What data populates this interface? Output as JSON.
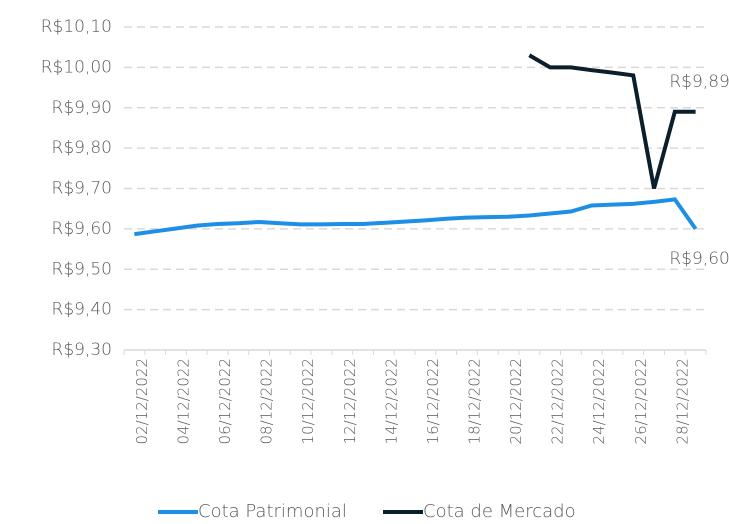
{
  "chart_data": {
    "type": "line",
    "categories": [
      "02/12/2022",
      null,
      "04/12/2022",
      null,
      "06/12/2022",
      null,
      "08/12/2022",
      null,
      "10/12/2022",
      null,
      "12/12/2022",
      null,
      "14/12/2022",
      null,
      "16/12/2022",
      null,
      "18/12/2022",
      null,
      "20/12/2022",
      null,
      "22/12/2022",
      null,
      "24/12/2022",
      null,
      "26/12/2022",
      null,
      "28/12/2022",
      null
    ],
    "series": [
      {
        "name": "Cota Patrimonial",
        "color": "#1e8fe6",
        "values": [
          9.587,
          9.594,
          9.601,
          9.608,
          9.612,
          9.614,
          9.617,
          9.614,
          9.611,
          9.611,
          9.612,
          9.612,
          9.615,
          9.618,
          9.621,
          9.625,
          9.628,
          9.629,
          9.63,
          9.633,
          9.638,
          9.643,
          9.658,
          9.66,
          9.662,
          9.667,
          9.673,
          9.6
        ],
        "value_labels": [
          null,
          null,
          null,
          null,
          null,
          null,
          null,
          null,
          null,
          null,
          null,
          null,
          null,
          null,
          null,
          null,
          null,
          null,
          null,
          null,
          null,
          null,
          null,
          null,
          null,
          null,
          null,
          "R$9,60"
        ]
      },
      {
        "name": "Cota de Mercado",
        "color": "#0b1e2c",
        "values": [
          null,
          null,
          null,
          null,
          null,
          null,
          null,
          null,
          null,
          null,
          null,
          null,
          null,
          null,
          null,
          null,
          null,
          null,
          null,
          10.03,
          10.0,
          10.0,
          9.993,
          9.987,
          9.98,
          9.7,
          9.89,
          9.89
        ],
        "value_labels": [
          null,
          null,
          null,
          null,
          null,
          null,
          null,
          null,
          null,
          null,
          null,
          null,
          null,
          null,
          null,
          null,
          null,
          null,
          null,
          null,
          null,
          null,
          null,
          null,
          null,
          null,
          null,
          "R$9,89"
        ]
      }
    ],
    "ylim": [
      9.3,
      10.1
    ],
    "yticks": [
      {
        "value": 9.3,
        "label": "R$9,30"
      },
      {
        "value": 9.4,
        "label": "R$9,40"
      },
      {
        "value": 9.5,
        "label": "R$9,50"
      },
      {
        "value": 9.6,
        "label": "R$9,60"
      },
      {
        "value": 9.7,
        "label": "R$9,70"
      },
      {
        "value": 9.8,
        "label": "R$9,80"
      },
      {
        "value": 9.9,
        "label": "R$9,90"
      },
      {
        "value": 10.0,
        "label": "R$10,00"
      },
      {
        "value": 10.1,
        "label": "R$10,10"
      }
    ],
    "grid": true,
    "legend": "bottom"
  }
}
